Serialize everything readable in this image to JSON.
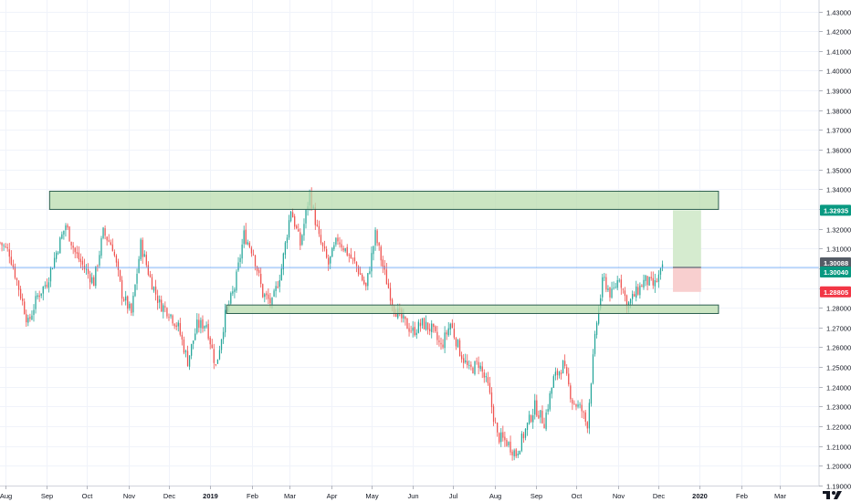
{
  "chart_data": {
    "type": "candlestick",
    "ylim": [
      1.19,
      1.4358
    ],
    "y_axis": {
      "position": "right",
      "ticks": [
        "1.19000",
        "1.20000",
        "1.21000",
        "1.22000",
        "1.23000",
        "1.24000",
        "1.25000",
        "1.26000",
        "1.27000",
        "1.28000",
        "1.29000",
        "1.30000",
        "1.31000",
        "1.32000",
        "1.33000",
        "1.34000",
        "1.35000",
        "1.36000",
        "1.37000",
        "1.38000",
        "1.39000",
        "1.40000",
        "1.41000",
        "1.42000",
        "1.43000"
      ]
    },
    "x_axis": {
      "ticks": [
        {
          "label": "Aug",
          "t": 0
        },
        {
          "label": "Sep",
          "t": 31
        },
        {
          "label": "Oct",
          "t": 61
        },
        {
          "label": "Nov",
          "t": 92
        },
        {
          "label": "Dec",
          "t": 122
        },
        {
          "label": "2019",
          "t": 153
        },
        {
          "label": "Feb",
          "t": 184
        },
        {
          "label": "Mar",
          "t": 212
        },
        {
          "label": "Apr",
          "t": 243
        },
        {
          "label": "May",
          "t": 273
        },
        {
          "label": "Jun",
          "t": 304
        },
        {
          "label": "Jul",
          "t": 334
        },
        {
          "label": "Aug",
          "t": 365
        },
        {
          "label": "Sep",
          "t": 396
        },
        {
          "label": "Oct",
          "t": 426
        },
        {
          "label": "Nov",
          "t": 457
        },
        {
          "label": "Dec",
          "t": 487
        },
        {
          "label": "2020",
          "t": 518
        },
        {
          "label": "Feb",
          "t": 549
        },
        {
          "label": "Mar",
          "t": 578
        }
      ],
      "range": [
        -4,
        607
      ]
    },
    "close_anchors": [
      {
        "t": -4,
        "v": 1.313
      },
      {
        "t": 3,
        "v": 1.308
      },
      {
        "t": 10,
        "v": 1.29
      },
      {
        "t": 17,
        "v": 1.272
      },
      {
        "t": 24,
        "v": 1.286
      },
      {
        "t": 31,
        "v": 1.293
      },
      {
        "t": 38,
        "v": 1.308
      },
      {
        "t": 45,
        "v": 1.322
      },
      {
        "t": 52,
        "v": 1.308
      },
      {
        "t": 59,
        "v": 1.3
      },
      {
        "t": 66,
        "v": 1.293
      },
      {
        "t": 73,
        "v": 1.318
      },
      {
        "t": 80,
        "v": 1.311
      },
      {
        "t": 87,
        "v": 1.287
      },
      {
        "t": 94,
        "v": 1.277
      },
      {
        "t": 101,
        "v": 1.312
      },
      {
        "t": 108,
        "v": 1.295
      },
      {
        "t": 115,
        "v": 1.282
      },
      {
        "t": 122,
        "v": 1.278
      },
      {
        "t": 129,
        "v": 1.27
      },
      {
        "t": 136,
        "v": 1.253
      },
      {
        "t": 143,
        "v": 1.271
      },
      {
        "t": 150,
        "v": 1.272
      },
      {
        "t": 157,
        "v": 1.25
      },
      {
        "t": 164,
        "v": 1.276
      },
      {
        "t": 171,
        "v": 1.29
      },
      {
        "t": 178,
        "v": 1.317
      },
      {
        "t": 185,
        "v": 1.308
      },
      {
        "t": 192,
        "v": 1.287
      },
      {
        "t": 199,
        "v": 1.282
      },
      {
        "t": 206,
        "v": 1.3
      },
      {
        "t": 213,
        "v": 1.33
      },
      {
        "t": 220,
        "v": 1.312
      },
      {
        "t": 227,
        "v": 1.338
      },
      {
        "t": 234,
        "v": 1.315
      },
      {
        "t": 241,
        "v": 1.302
      },
      {
        "t": 248,
        "v": 1.315
      },
      {
        "t": 255,
        "v": 1.308
      },
      {
        "t": 262,
        "v": 1.301
      },
      {
        "t": 269,
        "v": 1.29
      },
      {
        "t": 276,
        "v": 1.317
      },
      {
        "t": 283,
        "v": 1.297
      },
      {
        "t": 290,
        "v": 1.28
      },
      {
        "t": 297,
        "v": 1.273
      },
      {
        "t": 304,
        "v": 1.268
      },
      {
        "t": 311,
        "v": 1.272
      },
      {
        "t": 318,
        "v": 1.269
      },
      {
        "t": 325,
        "v": 1.26
      },
      {
        "t": 332,
        "v": 1.272
      },
      {
        "t": 339,
        "v": 1.258
      },
      {
        "t": 346,
        "v": 1.248
      },
      {
        "t": 353,
        "v": 1.252
      },
      {
        "t": 360,
        "v": 1.24
      },
      {
        "t": 367,
        "v": 1.215
      },
      {
        "t": 374,
        "v": 1.212
      },
      {
        "t": 381,
        "v": 1.206
      },
      {
        "t": 388,
        "v": 1.218
      },
      {
        "t": 395,
        "v": 1.23
      },
      {
        "t": 402,
        "v": 1.222
      },
      {
        "t": 409,
        "v": 1.244
      },
      {
        "t": 416,
        "v": 1.251
      },
      {
        "t": 423,
        "v": 1.233
      },
      {
        "t": 430,
        "v": 1.228
      },
      {
        "t": 434,
        "v": 1.22
      },
      {
        "t": 437,
        "v": 1.244
      },
      {
        "t": 441,
        "v": 1.272
      },
      {
        "t": 446,
        "v": 1.295
      },
      {
        "t": 452,
        "v": 1.286
      },
      {
        "t": 458,
        "v": 1.296
      },
      {
        "t": 464,
        "v": 1.281
      },
      {
        "t": 470,
        "v": 1.287
      },
      {
        "t": 477,
        "v": 1.294
      },
      {
        "t": 484,
        "v": 1.291
      },
      {
        "t": 491,
        "v": 1.3004
      }
    ],
    "zones": [
      {
        "name": "resistance-zone",
        "y1": 1.3298,
        "y2": 1.339,
        "t1": 33,
        "t2": 532,
        "color": "#b9dcae"
      },
      {
        "name": "support-zone",
        "y1": 1.2771,
        "y2": 1.2814,
        "t1": 165,
        "t2": 532,
        "color": "#b9dcae"
      }
    ],
    "position": {
      "entry": 1.3004,
      "target": 1.32935,
      "stop": 1.28805,
      "t1": 498,
      "t2": 519,
      "profit_color": "#d5ebcf",
      "loss_color": "#f8cfcf"
    },
    "price_line": 1.3004,
    "price_labels": [
      {
        "name": "target-price-label",
        "value": "1.32935",
        "bg": "#089981",
        "fg": "#ffffff"
      },
      {
        "name": "mid-price-label",
        "value": "1.30088",
        "bg": "#555c66",
        "fg": "#ffffff"
      },
      {
        "name": "last-price-label",
        "value": "1.30040",
        "bg": "#089981",
        "fg": "#ffffff"
      },
      {
        "name": "stop-price-label",
        "value": "1.28805",
        "bg": "#f23645",
        "fg": "#ffffff"
      }
    ],
    "label_values": [
      1.32935,
      1.30088,
      1.3004,
      1.28805
    ],
    "colors": {
      "up": "#26a69a",
      "down": "#ef5350",
      "grid": "#f0f3fa",
      "axis_text": "#131722",
      "price_line": "#2196f3",
      "zone_border": "#2c5f4f"
    }
  }
}
